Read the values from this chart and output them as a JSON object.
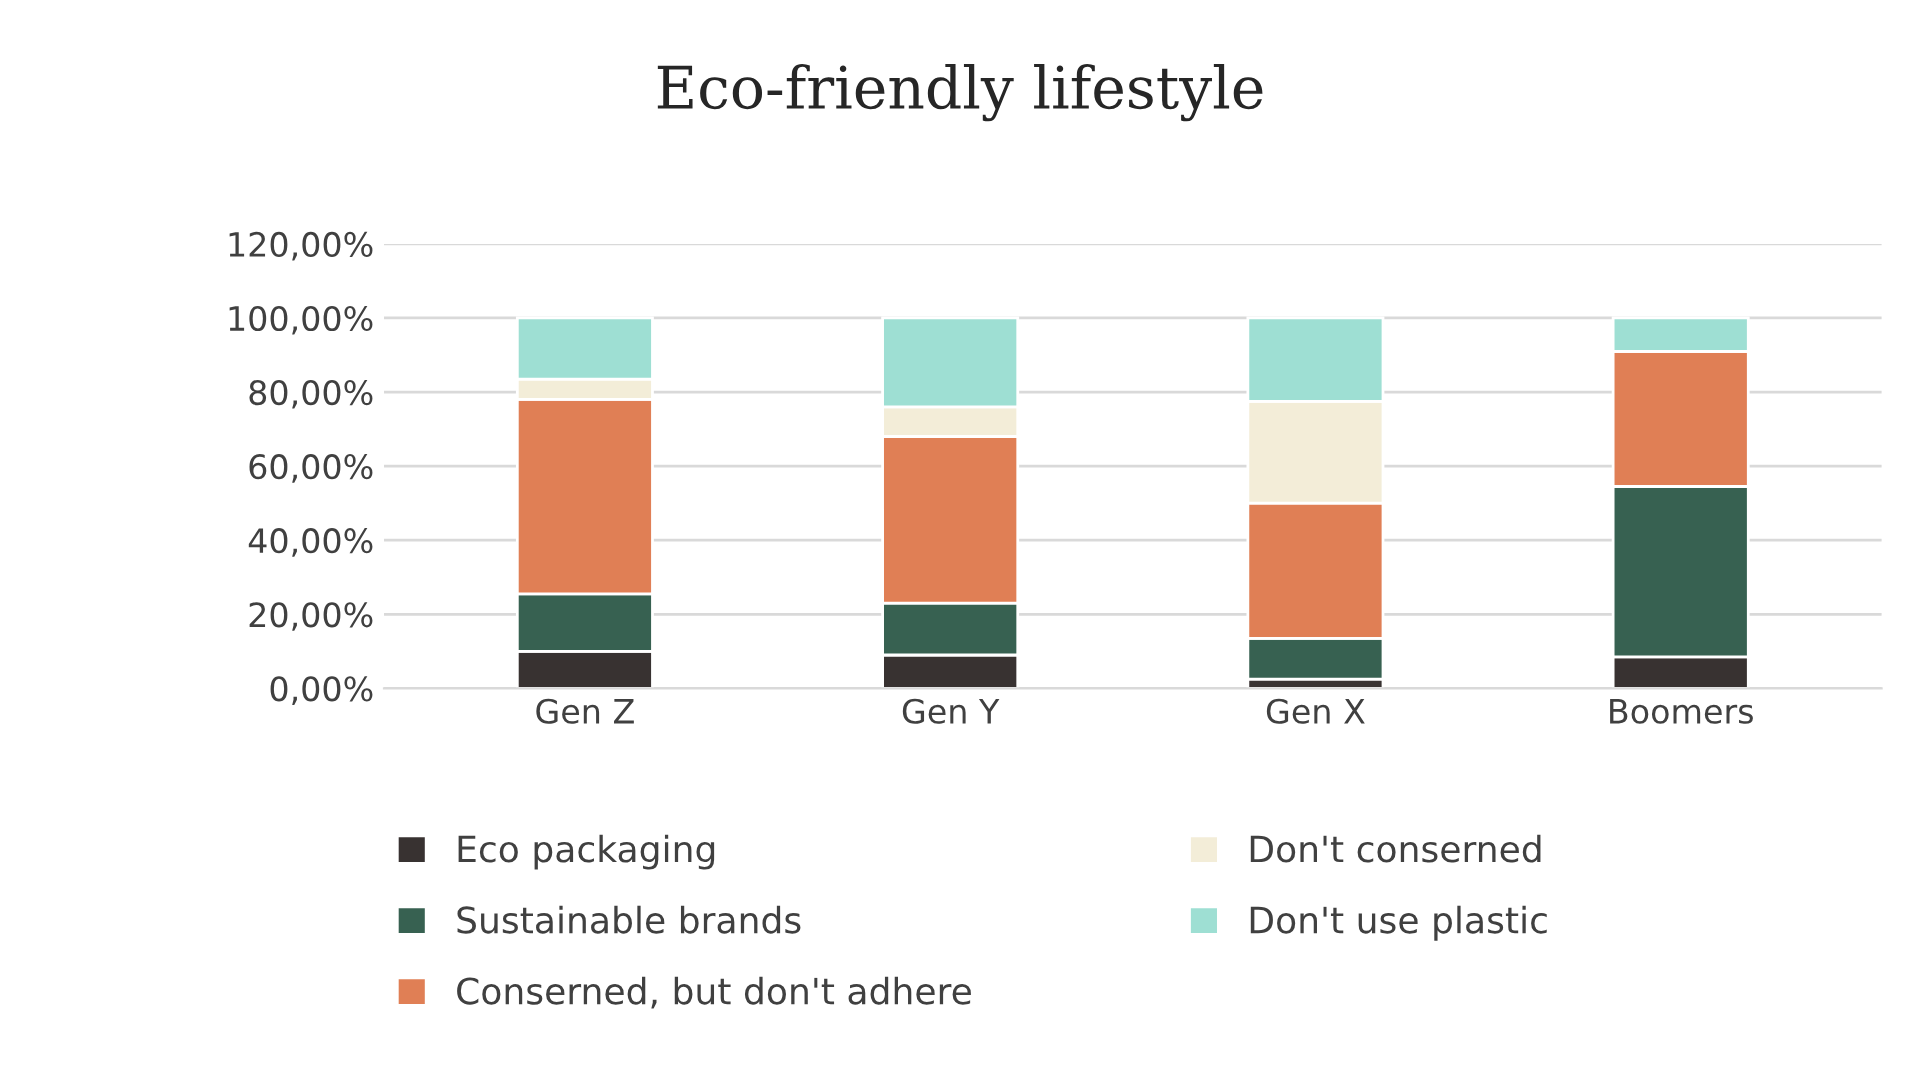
{
  "chart_data": {
    "type": "bar",
    "title": "Eco-friendly lifestyle",
    "categories": [
      "Gen Z",
      "Gen Y",
      "Gen X",
      "Boomers"
    ],
    "stacked": true,
    "series": [
      {
        "name": "Eco packaging",
        "color": "#383231",
        "values": [
          10,
          9,
          2.5,
          8.5
        ]
      },
      {
        "name": "Sustainable brands",
        "color": "#376151",
        "values": [
          15.5,
          14,
          11,
          46
        ]
      },
      {
        "name": "Conserned, but don't adhere",
        "color": "#e07f55",
        "values": [
          52.5,
          45,
          36.5,
          36.5
        ]
      },
      {
        "name": "Don't conserned",
        "color": "#f3edd8",
        "values": [
          5.5,
          8,
          27.5,
          0
        ]
      },
      {
        "name": "Don't use plastic",
        "color": "#9edfd3",
        "values": [
          16.5,
          24,
          22.5,
          9
        ]
      }
    ],
    "ylim": [
      0,
      120
    ],
    "yticks": [
      {
        "value": 0,
        "label": "0,00%"
      },
      {
        "value": 20,
        "label": "20,00%"
      },
      {
        "value": 40,
        "label": "40,00%"
      },
      {
        "value": 60,
        "label": "60,00%"
      },
      {
        "value": 80,
        "label": "80,00%"
      },
      {
        "value": 100,
        "label": "100,00%"
      },
      {
        "value": 120,
        "label": "120,00%"
      }
    ],
    "grid": "y",
    "legend": "bottom"
  }
}
